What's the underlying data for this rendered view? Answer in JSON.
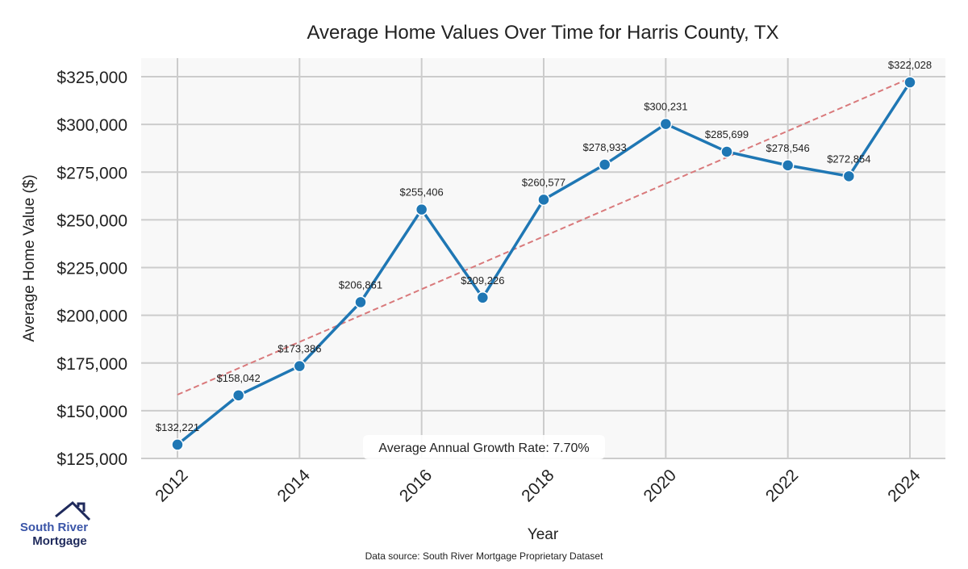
{
  "chart_data": {
    "type": "line",
    "title": "Average Home Values Over Time for Harris County, TX",
    "xlabel": "Year",
    "ylabel": "Average Home Value ($)",
    "x": [
      2012,
      2013,
      2014,
      2015,
      2016,
      2017,
      2018,
      2019,
      2020,
      2021,
      2022,
      2023,
      2024
    ],
    "series": [
      {
        "name": "Average Home Value",
        "color": "#1f77b4",
        "values": [
          132221,
          158042,
          173386,
          206861,
          255406,
          209226,
          260577,
          278933,
          300231,
          285699,
          278546,
          272854,
          322028
        ]
      }
    ],
    "data_labels": [
      "$132,221",
      "$158,042",
      "$173,386",
      "$206,861",
      "$255,406",
      "$209,226",
      "$260,577",
      "$278,933",
      "$300,231",
      "$285,699",
      "$278,546",
      "$272,854",
      "$322,028"
    ],
    "trend": {
      "name": "Trend",
      "color": "#d9797b",
      "start": [
        2012,
        158400
      ],
      "end": [
        2024,
        324200
      ]
    },
    "xlim": [
      2011.4,
      2024.6
    ],
    "ylim": [
      120000,
      335000
    ],
    "xticks": [
      2012,
      2014,
      2016,
      2018,
      2020,
      2022,
      2024
    ],
    "xtick_labels": [
      "2012",
      "2014",
      "2016",
      "2018",
      "2020",
      "2022",
      "2024"
    ],
    "yticks": [
      125000,
      150000,
      175000,
      200000,
      225000,
      250000,
      275000,
      300000,
      325000
    ],
    "ytick_labels": [
      "$125,000",
      "$150,000",
      "$175,000",
      "$200,000",
      "$225,000",
      "$250,000",
      "$275,000",
      "$300,000",
      "$325,000"
    ],
    "grid": true,
    "annotation": "Average Annual Growth Rate: 7.70%"
  },
  "footer": {
    "source": "Data source: South River Mortgage Proprietary Dataset"
  },
  "logo": {
    "line1": "South River",
    "line2": "Mortgage"
  }
}
